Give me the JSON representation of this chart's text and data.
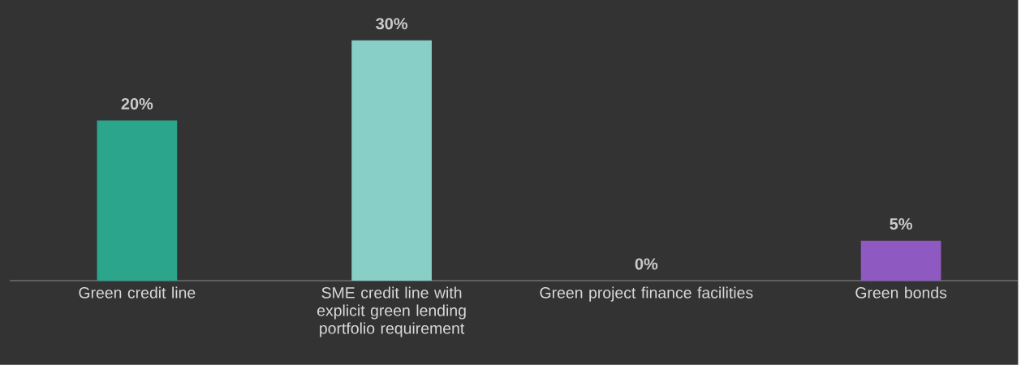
{
  "chart_data": {
    "type": "bar",
    "categories": [
      "Green credit line",
      "SME credit line with explicit green lending portfolio requirement",
      "Green project finance facilities",
      "Green bonds"
    ],
    "values": [
      20,
      30,
      0,
      5
    ],
    "value_labels": [
      "20%",
      "30%",
      "0%",
      "5%"
    ],
    "colors": [
      "#2ca58d",
      "#88cfc8",
      "#2ca58d",
      "#8e59c0"
    ]
  }
}
